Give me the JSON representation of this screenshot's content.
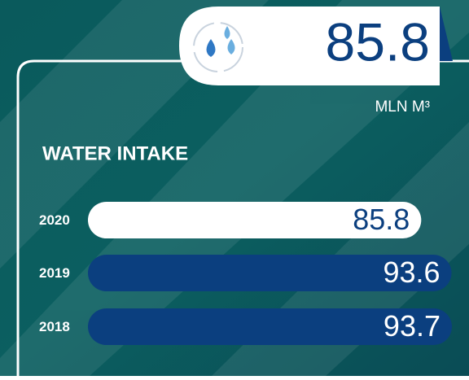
{
  "chart_data": {
    "type": "bar",
    "orientation": "horizontal",
    "title": "WATER INTAKE",
    "highlight": {
      "value": 85.8,
      "unit": "MLN M³"
    },
    "categories": [
      "2020",
      "2019",
      "2018"
    ],
    "values": [
      85.8,
      93.6,
      93.7
    ],
    "colors": [
      "#ffffff",
      "#0b3f7f",
      "#0b3f7f"
    ],
    "label_colors": [
      "#0b3f7f",
      "#ffffff",
      "#ffffff"
    ]
  }
}
